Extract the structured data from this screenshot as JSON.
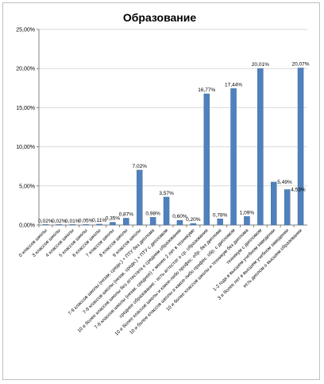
{
  "chart_data": {
    "type": "bar",
    "title": "Образование",
    "xlabel": "",
    "ylabel": "",
    "ylim": [
      0,
      25
    ],
    "yticks": [
      "0,00%",
      "5,00%",
      "10,00%",
      "15,00%",
      "20,00%",
      "25,00%"
    ],
    "grid": "horizontal",
    "legend": "none",
    "bar_color": "#4f81bd",
    "categories": [
      "0 классов школы",
      "3 классов школы",
      "4 классов школы",
      "5 классов школы",
      "6 классов школы",
      "7 классов школы",
      "8 классов школы",
      "9 классов школы",
      "7-9 классов школы (незак. средн.) + ПТУ без диплома",
      "7-9 классов школы (незак. средн.) + ПТУ с дипломом",
      "10 и более классов школы без аттестата о среднем образовании",
      "7-9 классов школы (незак. среднее) + менее 2 лет в техникуме",
      "среднее образование - есть аттестат о ср. образовании",
      "10 и более классов школы и какое-либо профес. обр. без диплома",
      "10 и более классов школы и какое-либо профес. обр. с дипломом",
      "10 и более классов школы и техникум без диплома",
      "техникум с дипломом",
      "1-2 года в высшем учебном заведении",
      "3 и более лет в высшем учебном заведении",
      "есть диплом о высшем образовании"
    ],
    "values": [
      0.02,
      0.02,
      0.01,
      0.05,
      0.11,
      0.35,
      0.87,
      7.02,
      0.98,
      3.57,
      0.6,
      0.2,
      16.77,
      0.78,
      17.44,
      1.09,
      20.01,
      5.49,
      4.53,
      20.07
    ],
    "data_labels": [
      "0,02%",
      "0,02%",
      "0,01%",
      "0,05%",
      "0,11%",
      "0,35%",
      "0,87%",
      "7,02%",
      "0,98%",
      "3,57%",
      "0,60%",
      "0,20%",
      "16,77%",
      "0,78%",
      "17,44%",
      "1,09%",
      "20,01%",
      "",
      "",
      "20,07%"
    ],
    "data_labels_right": [
      "",
      "",
      "",
      "",
      "",
      "",
      "",
      "",
      "",
      "",
      "",
      "",
      "",
      "",
      "",
      "",
      "",
      "5,49%",
      "4,53%",
      ""
    ]
  }
}
